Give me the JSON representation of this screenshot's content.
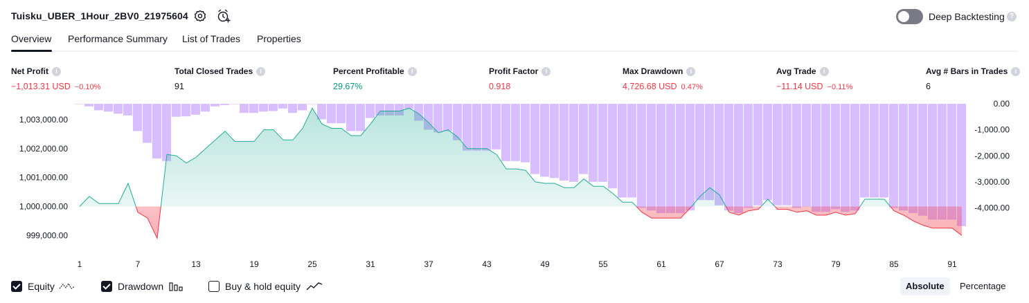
{
  "header": {
    "strategy_title": "Tuisku_UBER_1Hour_2BV0_21975604",
    "deep_backtesting_label": "Deep Backtesting",
    "deep_backtesting_enabled": false,
    "help_glyph": "?"
  },
  "tabs": [
    {
      "label": "Overview",
      "active": true
    },
    {
      "label": "Performance Summary",
      "active": false
    },
    {
      "label": "List of Trades",
      "active": false
    },
    {
      "label": "Properties",
      "active": false
    }
  ],
  "metrics": [
    {
      "label": "Net Profit",
      "value": "−1,013.31 USD",
      "pct": "−0.10%",
      "color": "#f23645"
    },
    {
      "label": "Total Closed Trades",
      "value": "91",
      "pct": "",
      "color": "#131722"
    },
    {
      "label": "Percent Profitable",
      "value": "29.67%",
      "pct": "",
      "color": "#089981"
    },
    {
      "label": "Profit Factor",
      "value": "0.918",
      "pct": "",
      "color": "#f23645"
    },
    {
      "label": "Max Drawdown",
      "value": "4,726.68 USD",
      "pct": "0.47%",
      "color": "#f23645"
    },
    {
      "label": "Avg Trade",
      "value": "−11.14 USD",
      "pct": "−0.11%",
      "color": "#f23645"
    },
    {
      "label": "Avg # Bars in Trades",
      "value": "6",
      "pct": "",
      "color": "#131722"
    }
  ],
  "legend": {
    "equity_label": "Equity",
    "equity_checked": true,
    "drawdown_label": "Drawdown",
    "drawdown_checked": true,
    "buyhold_label": "Buy & hold equity",
    "buyhold_checked": false,
    "absolute_label": "Absolute",
    "percentage_label": "Percentage",
    "mode": "Absolute"
  },
  "colors": {
    "equity_up": "#22ab94",
    "equity_down": "#f23645",
    "drawdown_bar": "#d1b3ff",
    "text": "#131722"
  },
  "chart_data": {
    "type": "line",
    "series": [
      {
        "name": "Equity",
        "x": [
          1,
          2,
          3,
          4,
          5,
          6,
          7,
          8,
          9,
          10,
          11,
          12,
          13,
          14,
          15,
          16,
          17,
          18,
          19,
          20,
          21,
          22,
          23,
          24,
          25,
          26,
          27,
          28,
          29,
          30,
          31,
          32,
          33,
          34,
          35,
          36,
          37,
          38,
          39,
          40,
          41,
          42,
          43,
          44,
          45,
          46,
          47,
          48,
          49,
          50,
          51,
          52,
          53,
          54,
          55,
          56,
          57,
          58,
          59,
          60,
          61,
          62,
          63,
          64,
          65,
          66,
          67,
          68,
          69,
          70,
          71,
          72,
          73,
          74,
          75,
          76,
          77,
          78,
          79,
          80,
          81,
          82,
          83,
          84,
          85,
          86,
          87,
          88,
          89,
          90,
          91,
          92
        ],
        "values": [
          1000000,
          1000350,
          1000100,
          1000100,
          1000100,
          1000800,
          999800,
          999600,
          998900,
          1001800,
          1001750,
          1001500,
          1001700,
          1002000,
          1002300,
          1002600,
          1002250,
          1002250,
          1002250,
          1002650,
          1002650,
          1002300,
          1002300,
          1002700,
          1003400,
          1002850,
          1002700,
          1002700,
          1002450,
          1002450,
          1002850,
          1003300,
          1003300,
          1003300,
          1003400,
          1003200,
          1002900,
          1002550,
          1002650,
          1002400,
          1002000,
          1002000,
          1002000,
          1001800,
          1001300,
          1001300,
          1001250,
          1000850,
          1000800,
          1000800,
          1000650,
          1000650,
          1000950,
          1000700,
          1000700,
          1000450,
          1000150,
          1000150,
          999800,
          999600,
          999600,
          999600,
          999600,
          999950,
          1000350,
          1000650,
          1000400,
          999800,
          999700,
          999850,
          999900,
          1000250,
          999900,
          999900,
          999800,
          999850,
          999700,
          999700,
          999800,
          999700,
          999750,
          1000250,
          1000250,
          1000250,
          999850,
          999700,
          999500,
          999350,
          999250,
          999250,
          999250,
          999000
        ]
      },
      {
        "name": "Drawdown",
        "x": [
          1,
          2,
          3,
          4,
          5,
          6,
          7,
          8,
          9,
          10,
          11,
          12,
          13,
          14,
          15,
          16,
          17,
          18,
          19,
          20,
          21,
          22,
          23,
          24,
          25,
          26,
          27,
          28,
          29,
          30,
          31,
          32,
          33,
          34,
          35,
          36,
          37,
          38,
          39,
          40,
          41,
          42,
          43,
          44,
          45,
          46,
          47,
          48,
          49,
          50,
          51,
          52,
          53,
          54,
          55,
          56,
          57,
          58,
          59,
          60,
          61,
          62,
          63,
          64,
          65,
          66,
          67,
          68,
          69,
          70,
          71,
          72,
          73,
          74,
          75,
          76,
          77,
          78,
          79,
          80,
          81,
          82,
          83,
          84,
          85,
          86,
          87,
          88,
          89,
          90,
          91,
          92
        ],
        "values": [
          0,
          -100,
          -250,
          -300,
          -380,
          -450,
          -1050,
          -1500,
          -2100,
          -2200,
          -500,
          -480,
          -420,
          -300,
          -100,
          -50,
          0,
          -350,
          -350,
          -300,
          -280,
          -180,
          -350,
          -250,
          0,
          -600,
          -750,
          -750,
          -1050,
          -1050,
          -550,
          -450,
          -450,
          -450,
          -200,
          -650,
          -1000,
          -1100,
          -1050,
          -1400,
          -1800,
          -1800,
          -1800,
          -1750,
          -2200,
          -2200,
          -2250,
          -2700,
          -2800,
          -2850,
          -2950,
          -3000,
          -2700,
          -3000,
          -3000,
          -3250,
          -3600,
          -3600,
          -4000,
          -4100,
          -4200,
          -4200,
          -4200,
          -4100,
          -3700,
          -3700,
          -3900,
          -4100,
          -4200,
          -4000,
          -3900,
          -3700,
          -3900,
          -3900,
          -4000,
          -3950,
          -4150,
          -4150,
          -4050,
          -4150,
          -4100,
          -3600,
          -3600,
          -3600,
          -4000,
          -4100,
          -4200,
          -4300,
          -4450,
          -4450,
          -4450,
          -4700
        ]
      }
    ],
    "x_ticks": [
      "1",
      "7",
      "13",
      "19",
      "25",
      "31",
      "37",
      "43",
      "49",
      "55",
      "61",
      "67",
      "73",
      "79",
      "85",
      "91"
    ],
    "y_ticks_left": [
      "999,000.00",
      "1,000,000.00",
      "1,001,000.00",
      "1,002,000.00",
      "1,003,000.00"
    ],
    "y_ticks_left_values": [
      999000,
      1000000,
      1001000,
      1002000,
      1003000
    ],
    "y_ticks_right": [
      "0.00",
      "-1,000.00",
      "-2,000.00",
      "-3,000.00",
      "-4,000.00"
    ],
    "y_ticks_right_values": [
      0,
      -1000,
      -2000,
      -3000,
      -4000
    ],
    "ylim_left": [
      998600,
      1003550
    ],
    "ylim_right": [
      -5500,
      0
    ],
    "baseline": 1000000,
    "grid": false
  }
}
